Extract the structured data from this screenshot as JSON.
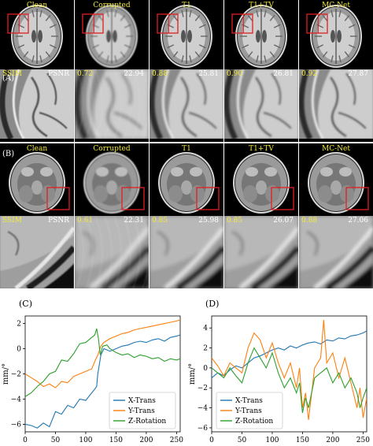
{
  "figure": {
    "methods": [
      "Clean",
      "Corrupted",
      "T1",
      "T1+TV",
      "MC-Net"
    ],
    "panel_a": {
      "label": "(A)",
      "ssim_label": "SSIM",
      "psnr_label": "PSNR",
      "ssim": [
        "",
        "0.72",
        "0.88",
        "0.90",
        "0.92"
      ],
      "psnr": [
        "",
        "22.94",
        "25.81",
        "26.81",
        "27.87"
      ]
    },
    "panel_b": {
      "label": "(B)",
      "ssim_label": "SSIM",
      "psnr_label": "PSNR",
      "ssim": [
        "",
        "0.61",
        "0.85",
        "0.85",
        "0.88"
      ],
      "psnr": [
        "",
        "22.31",
        "25.98",
        "26.07",
        "27.06"
      ]
    }
  },
  "chart_data": [
    {
      "type": "line",
      "panel_label": "(C)",
      "title": "",
      "xlabel": "",
      "ylabel": "mm/°",
      "xlim": [
        0,
        256
      ],
      "ylim": [
        -6.6,
        2.6
      ],
      "xticks": [
        0,
        50,
        100,
        150,
        200,
        250
      ],
      "yticks": [
        -6,
        -4,
        -2,
        0,
        2
      ],
      "legend_position": "lower-right",
      "colors": {
        "X-Trans": "#1f77b4",
        "Y-Trans": "#ff7f0e",
        "Z-Rotation": "#2ca02c"
      },
      "series": [
        {
          "name": "X-Trans",
          "x": [
            0,
            10,
            20,
            30,
            40,
            50,
            60,
            70,
            80,
            90,
            100,
            110,
            115,
            118,
            120,
            125,
            130,
            140,
            150,
            160,
            170,
            180,
            190,
            200,
            210,
            220,
            230,
            240,
            250,
            256
          ],
          "y": [
            -6.0,
            -6.1,
            -6.3,
            -5.9,
            -6.2,
            -5.0,
            -5.2,
            -4.5,
            -4.7,
            -4.0,
            -4.1,
            -3.5,
            -3.2,
            -3.0,
            -2.0,
            -0.5,
            0.0,
            -0.2,
            0.0,
            0.2,
            0.3,
            0.5,
            0.6,
            0.5,
            0.7,
            0.8,
            0.6,
            0.9,
            1.0,
            1.1
          ]
        },
        {
          "name": "Y-Trans",
          "x": [
            0,
            10,
            20,
            30,
            40,
            50,
            60,
            70,
            80,
            90,
            100,
            110,
            115,
            120,
            125,
            130,
            140,
            150,
            160,
            170,
            180,
            190,
            200,
            210,
            220,
            230,
            240,
            250,
            256
          ],
          "y": [
            -2.0,
            -2.3,
            -2.6,
            -3.0,
            -2.8,
            -3.1,
            -2.6,
            -2.7,
            -2.2,
            -2.0,
            -1.8,
            -1.6,
            -1.0,
            -0.5,
            0.2,
            0.5,
            0.8,
            1.0,
            1.2,
            1.3,
            1.5,
            1.6,
            1.7,
            1.8,
            1.9,
            2.0,
            2.1,
            2.2,
            2.3
          ]
        },
        {
          "name": "Z-Rotation",
          "x": [
            0,
            10,
            20,
            30,
            40,
            50,
            60,
            70,
            80,
            90,
            100,
            110,
            115,
            118,
            121,
            124,
            128,
            135,
            140,
            150,
            160,
            170,
            180,
            190,
            200,
            210,
            220,
            230,
            240,
            250,
            256
          ],
          "y": [
            -3.8,
            -3.5,
            -3.0,
            -2.6,
            -2.0,
            -1.8,
            -0.9,
            -1.0,
            -0.4,
            0.4,
            0.5,
            0.9,
            1.1,
            1.6,
            0.8,
            -0.5,
            0.2,
            0.3,
            0.0,
            -0.3,
            -0.5,
            -0.4,
            -0.7,
            -0.5,
            -0.6,
            -0.8,
            -0.7,
            -1.0,
            -0.8,
            -0.9,
            -0.8
          ]
        }
      ]
    },
    {
      "type": "line",
      "panel_label": "(D)",
      "title": "",
      "xlabel": "",
      "ylabel": "mm/°",
      "xlim": [
        0,
        256
      ],
      "ylim": [
        -6.4,
        5.2
      ],
      "xticks": [
        0,
        50,
        100,
        150,
        200,
        250
      ],
      "yticks": [
        -6,
        -4,
        -2,
        0,
        2,
        4
      ],
      "legend_position": "lower-left",
      "colors": {
        "X-Trans": "#1f77b4",
        "Y-Trans": "#ff7f0e",
        "Z-Rotation": "#2ca02c"
      },
      "series": [
        {
          "name": "X-Trans",
          "x": [
            0,
            10,
            20,
            30,
            40,
            50,
            60,
            70,
            80,
            90,
            100,
            110,
            120,
            130,
            140,
            150,
            160,
            170,
            180,
            190,
            200,
            210,
            220,
            230,
            240,
            250,
            256
          ],
          "y": [
            -1.0,
            -0.5,
            -0.8,
            -0.2,
            0.2,
            0.0,
            0.5,
            1.0,
            1.2,
            1.5,
            1.8,
            2.0,
            1.8,
            2.2,
            2.0,
            2.3,
            2.5,
            2.6,
            2.4,
            2.8,
            2.7,
            3.0,
            2.9,
            3.2,
            3.3,
            3.5,
            3.7
          ]
        },
        {
          "name": "Y-Trans",
          "x": [
            0,
            10,
            20,
            30,
            40,
            50,
            60,
            70,
            80,
            90,
            100,
            110,
            120,
            130,
            140,
            145,
            150,
            155,
            160,
            170,
            180,
            185,
            190,
            200,
            210,
            220,
            230,
            240,
            245,
            250,
            256
          ],
          "y": [
            1.0,
            0.2,
            -0.8,
            0.5,
            0.0,
            -0.5,
            2.0,
            3.5,
            2.8,
            1.0,
            2.5,
            0.5,
            -1.0,
            0.5,
            -2.0,
            0.0,
            -4.0,
            -2.5,
            -5.2,
            0.0,
            1.0,
            4.8,
            0.5,
            1.5,
            -1.0,
            1.0,
            -1.5,
            -4.0,
            -2.0,
            -5.0,
            -3.0
          ]
        },
        {
          "name": "Z-Rotation",
          "x": [
            0,
            10,
            20,
            30,
            40,
            50,
            60,
            70,
            80,
            90,
            100,
            110,
            120,
            130,
            140,
            145,
            150,
            155,
            160,
            170,
            180,
            190,
            200,
            210,
            220,
            230,
            240,
            245,
            250,
            256
          ],
          "y": [
            0.0,
            -0.5,
            -1.0,
            0.0,
            -0.8,
            -1.5,
            0.5,
            2.0,
            1.0,
            0.0,
            1.5,
            -0.5,
            -2.0,
            -1.0,
            -2.5,
            -1.5,
            -4.5,
            -3.0,
            -4.0,
            -1.0,
            -0.5,
            0.0,
            -1.5,
            -0.5,
            -2.0,
            -1.0,
            -2.5,
            -4.0,
            -3.0,
            -2.0
          ]
        }
      ]
    }
  ]
}
